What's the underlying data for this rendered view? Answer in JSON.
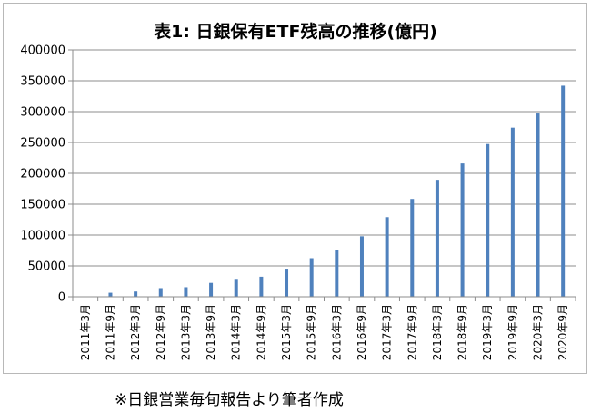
{
  "chart_data": {
    "type": "bar",
    "title": "表1: 日銀保有ETF残高の推移(億円)",
    "categories": [
      "2011年3月",
      "2011年9月",
      "2012年3月",
      "2012年9月",
      "2013年3月",
      "2013年9月",
      "2014年3月",
      "2014年9月",
      "2015年3月",
      "2015年9月",
      "2016年3月",
      "2016年9月",
      "2017年3月",
      "2017年9月",
      "2018年3月",
      "2018年9月",
      "2019年3月",
      "2019年9月",
      "2020年3月",
      "2020年9月"
    ],
    "values": [
      500,
      6500,
      8500,
      14000,
      15500,
      22500,
      29000,
      32500,
      45500,
      62500,
      76000,
      98000,
      129000,
      158500,
      189500,
      216000,
      247500,
      274000,
      297000,
      342000
    ],
    "ylim": [
      0,
      400000
    ],
    "yticks": [
      0,
      50000,
      100000,
      150000,
      200000,
      250000,
      300000,
      350000,
      400000
    ],
    "bar_color": "#4f81bd",
    "grid": true,
    "legend": "none"
  },
  "footnote": "※日銀営業毎旬報告より筆者作成"
}
